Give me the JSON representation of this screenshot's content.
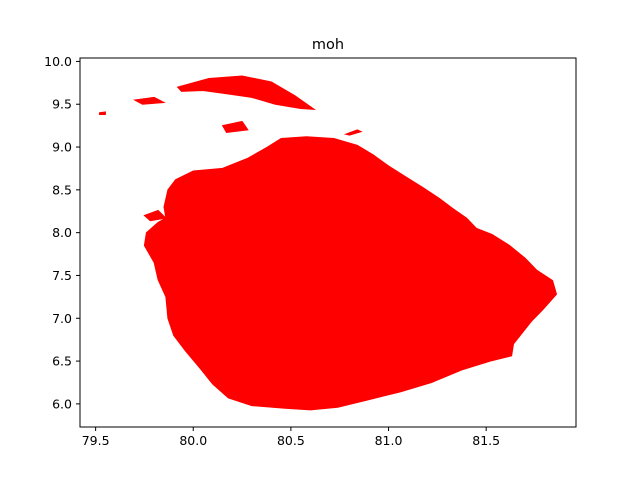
{
  "chart_data": {
    "type": "map",
    "title": "moh",
    "xlabel": "",
    "ylabel": "",
    "xlim": [
      79.42,
      81.96
    ],
    "ylim": [
      5.73,
      10.04
    ],
    "xticks": [
      "79.5",
      "80.0",
      "80.5",
      "81.0",
      "81.5"
    ],
    "yticks": [
      "6.0",
      "6.5",
      "7.0",
      "7.5",
      "8.0",
      "8.5",
      "9.0",
      "9.5",
      "10.0"
    ],
    "fill_color": "#ff0000",
    "grid": false,
    "legend": "none",
    "outline_lonlat": [
      [
        79.91,
        8.62
      ],
      [
        79.87,
        8.5
      ],
      [
        79.85,
        8.3
      ],
      [
        79.86,
        8.17
      ],
      [
        79.82,
        8.12
      ],
      [
        79.76,
        8.0
      ],
      [
        79.75,
        7.85
      ],
      [
        79.8,
        7.65
      ],
      [
        79.82,
        7.45
      ],
      [
        79.86,
        7.25
      ],
      [
        79.87,
        7.0
      ],
      [
        79.9,
        6.8
      ],
      [
        79.96,
        6.62
      ],
      [
        80.04,
        6.4
      ],
      [
        80.1,
        6.23
      ],
      [
        80.18,
        6.07
      ],
      [
        80.3,
        5.98
      ],
      [
        80.47,
        5.95
      ],
      [
        80.6,
        5.93
      ],
      [
        80.74,
        5.96
      ],
      [
        80.9,
        6.05
      ],
      [
        81.06,
        6.14
      ],
      [
        81.22,
        6.25
      ],
      [
        81.38,
        6.4
      ],
      [
        81.52,
        6.5
      ],
      [
        81.63,
        6.56
      ],
      [
        81.64,
        6.7
      ],
      [
        81.73,
        6.96
      ],
      [
        81.79,
        7.1
      ],
      [
        81.86,
        7.28
      ],
      [
        81.84,
        7.44
      ],
      [
        81.76,
        7.56
      ],
      [
        81.7,
        7.7
      ],
      [
        81.62,
        7.85
      ],
      [
        81.53,
        7.98
      ],
      [
        81.45,
        8.05
      ],
      [
        81.4,
        8.17
      ],
      [
        81.33,
        8.28
      ],
      [
        81.26,
        8.4
      ],
      [
        81.18,
        8.52
      ],
      [
        81.09,
        8.65
      ],
      [
        81.0,
        8.78
      ],
      [
        80.92,
        8.91
      ],
      [
        80.84,
        9.02
      ],
      [
        80.72,
        9.1
      ],
      [
        80.58,
        9.12
      ],
      [
        80.45,
        9.1
      ],
      [
        80.38,
        9.0
      ],
      [
        80.28,
        8.87
      ],
      [
        80.15,
        8.75
      ],
      [
        80.0,
        8.72
      ]
    ],
    "jaffna_lonlat": [
      [
        79.92,
        9.7
      ],
      [
        80.08,
        9.8
      ],
      [
        80.25,
        9.83
      ],
      [
        80.4,
        9.76
      ],
      [
        80.52,
        9.6
      ],
      [
        80.62,
        9.44
      ],
      [
        80.55,
        9.45
      ],
      [
        80.42,
        9.5
      ],
      [
        80.3,
        9.58
      ],
      [
        80.18,
        9.62
      ],
      [
        80.05,
        9.66
      ],
      [
        79.94,
        9.65
      ]
    ],
    "isles_lonlat": [
      [
        [
          79.7,
          9.55
        ],
        [
          79.8,
          9.58
        ],
        [
          79.85,
          9.52
        ],
        [
          79.74,
          9.5
        ]
      ],
      [
        [
          79.52,
          9.4
        ],
        [
          79.55,
          9.41
        ],
        [
          79.55,
          9.38
        ],
        [
          79.52,
          9.38
        ]
      ],
      [
        [
          80.15,
          9.25
        ],
        [
          80.25,
          9.3
        ],
        [
          80.28,
          9.2
        ],
        [
          80.17,
          9.17
        ]
      ],
      [
        [
          80.78,
          9.15
        ],
        [
          80.84,
          9.2
        ],
        [
          80.86,
          9.18
        ],
        [
          80.8,
          9.14
        ]
      ],
      [
        [
          79.75,
          8.2
        ],
        [
          79.82,
          8.26
        ],
        [
          79.86,
          8.17
        ],
        [
          79.78,
          8.14
        ]
      ]
    ]
  }
}
